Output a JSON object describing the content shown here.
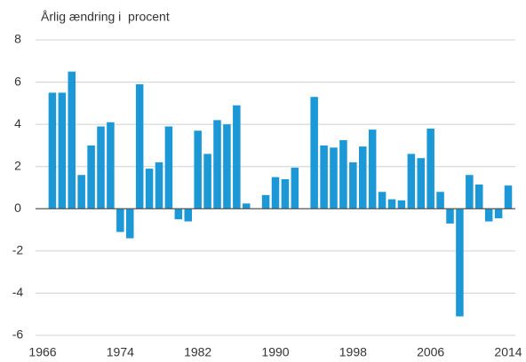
{
  "chart_data": {
    "type": "bar",
    "y_label": "Årlig ændring i  procent",
    "x": [
      1967,
      1968,
      1969,
      1970,
      1971,
      1972,
      1973,
      1974,
      1975,
      1976,
      1977,
      1978,
      1979,
      1980,
      1981,
      1982,
      1983,
      1984,
      1985,
      1986,
      1987,
      1988,
      1989,
      1990,
      1991,
      1992,
      1993,
      1994,
      1995,
      1996,
      1997,
      1998,
      1999,
      2000,
      2001,
      2002,
      2003,
      2004,
      2005,
      2006,
      2007,
      2008,
      2009,
      2010,
      2011,
      2012,
      2013,
      2014
    ],
    "values": [
      5.5,
      5.5,
      6.5,
      1.6,
      3.0,
      3.9,
      4.1,
      -1.1,
      -1.4,
      5.9,
      1.9,
      2.2,
      3.9,
      -0.5,
      -0.6,
      3.7,
      2.6,
      4.2,
      4.0,
      4.9,
      0.25,
      0,
      0.65,
      1.5,
      1.4,
      1.95,
      0,
      5.3,
      3.0,
      2.9,
      3.25,
      2.2,
      2.95,
      3.75,
      0.8,
      0.45,
      0.4,
      2.6,
      2.4,
      3.8,
      0.8,
      -0.7,
      -5.1,
      1.6,
      1.15,
      -0.6,
      -0.45,
      1.1
    ],
    "color": "#1b98d5",
    "xlim": [
      1966,
      2014
    ],
    "xticks": [
      1966,
      1974,
      1982,
      1990,
      1998,
      2006,
      2014
    ],
    "ylim": [
      -6,
      8
    ],
    "yticks": [
      -6,
      -4,
      -2,
      0,
      2,
      4,
      6,
      8
    ],
    "grid": true
  }
}
